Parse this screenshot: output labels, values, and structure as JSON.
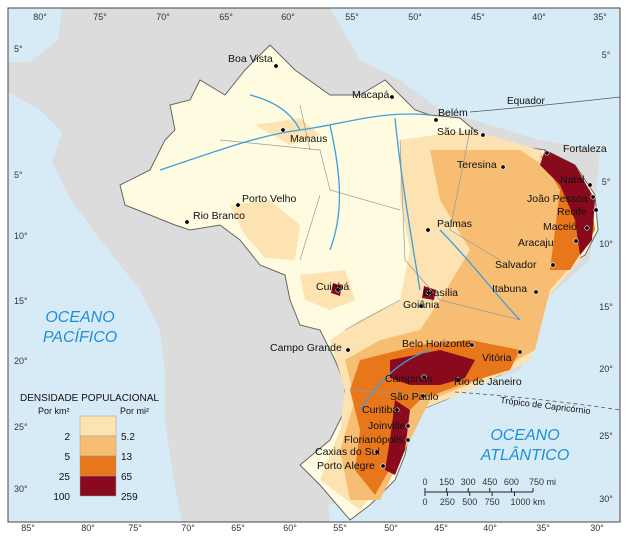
{
  "legend": {
    "title": "DENSIDADE POPULACIONAL",
    "unit_km": "Por km²",
    "unit_mi": "Por mi²",
    "km": [
      "2",
      "5",
      "25",
      "100"
    ],
    "mi": [
      "5.2",
      "13",
      "65",
      "259"
    ],
    "colors": [
      "#fffbe1",
      "#fde3b1",
      "#f7bd72",
      "#e8771c",
      "#8a0a1d"
    ]
  },
  "oceans": {
    "pacific": [
      "OCEANO",
      "PACÍFICO"
    ],
    "atlantic": [
      "OCEANO",
      "ATLÂNTICO"
    ]
  },
  "lines": {
    "equator": "Equador",
    "tropic": "Trópico de Capricórnio"
  },
  "cities": [
    "Boa Vista",
    "Macapá",
    "Belém",
    "São Luís",
    "Manaus",
    "Fortaleza",
    "Teresina",
    "Natal",
    "João Pessoa",
    "Recife",
    "Porto Velho",
    "Rio Branco",
    "Palmas",
    "Maceió",
    "Aracaju",
    "Salvador",
    "Cuiabá",
    "Brasília",
    "Goiânia",
    "Itabuna",
    "Campo Grande",
    "Belo Horizonte",
    "Vitória",
    "Campinas",
    "Rio de Janeiro",
    "São Paulo",
    "Curitiba",
    "Joinville",
    "Florianópolis",
    "Caxias do Sul",
    "Porto Alegre"
  ],
  "graticule": {
    "top": [
      "80°",
      "75°",
      "70°",
      "65°",
      "60°",
      "55°",
      "50°",
      "45°",
      "40°",
      "35°"
    ],
    "bottom": [
      "85°",
      "80°",
      "75°",
      "70°",
      "65°",
      "60°",
      "55°",
      "50°",
      "45°",
      "40°",
      "35°",
      "30°"
    ],
    "left": [
      "5°",
      "5°",
      "10°",
      "15°",
      "20°",
      "25°",
      "30°"
    ],
    "right": [
      "5°",
      "5°",
      "10°",
      "15°",
      "20°",
      "25°",
      "30°"
    ]
  },
  "scale": {
    "mi": [
      0,
      150,
      300,
      450,
      600,
      {
        "value": 750,
        "label": "750 mi"
      }
    ],
    "km": [
      0,
      250,
      500,
      750,
      {
        "value": 1000,
        "label": "1000 km"
      }
    ]
  }
}
